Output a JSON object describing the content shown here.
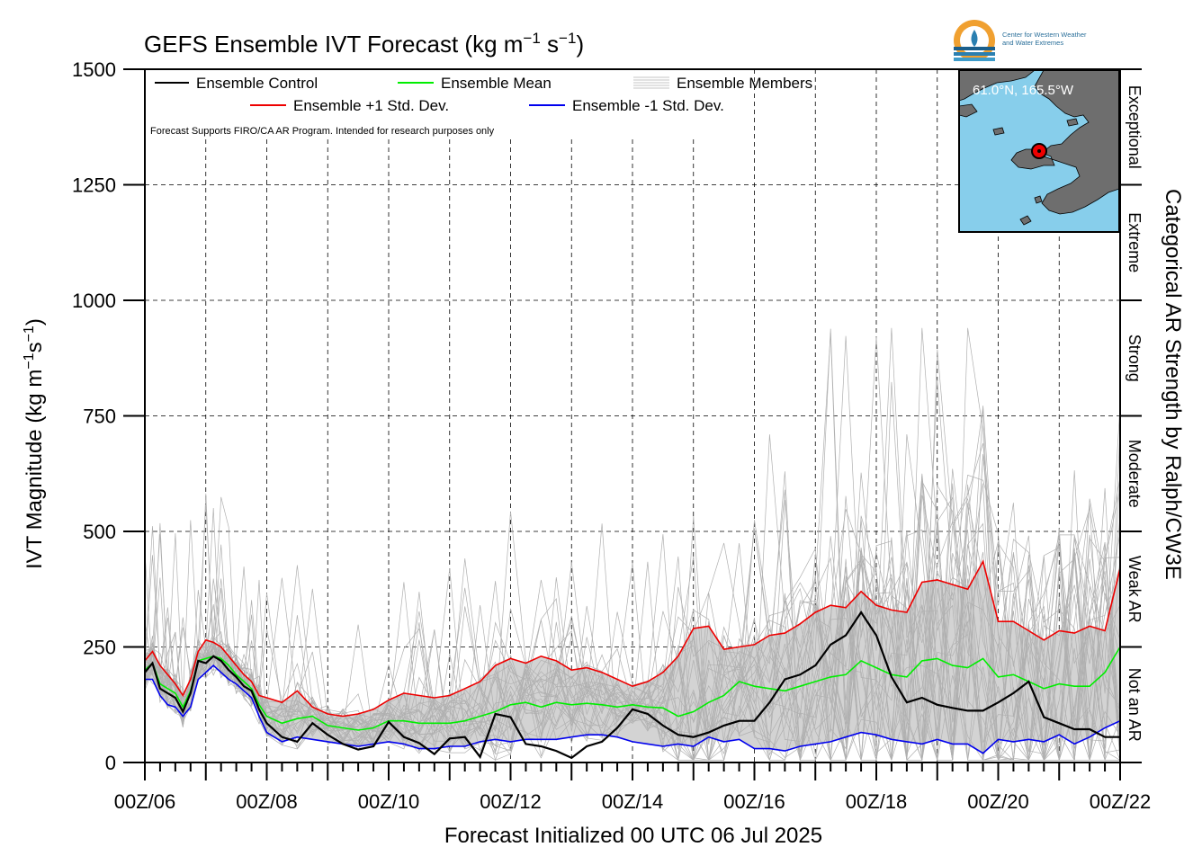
{
  "chart_data": {
    "type": "line",
    "title": "GEFS Ensemble IVT Forecast (kg m",
    "title_unit_exp1": "−1",
    "title_mid": " s",
    "title_unit_exp2": "−1",
    "title_end": ")",
    "ylabel_main": "IVT Magnitude (kg m",
    "ylabel_exp1": "−1",
    "ylabel_mid": "s",
    "ylabel_exp2": "−1",
    "ylabel_end": ")",
    "xlabel": "Forecast Initialized 00 UTC 06 Jul 2025",
    "right_label": "Categorical AR Strength by Ralph/CW3E",
    "ylim": [
      0,
      1500
    ],
    "yticks": [
      0,
      250,
      500,
      750,
      1000,
      1250,
      1500
    ],
    "x_days": [
      6,
      22
    ],
    "x_tick_labels": [
      "00Z/06",
      "00Z/08",
      "00Z/10",
      "00Z/12",
      "00Z/14",
      "00Z/16",
      "00Z/18",
      "00Z/20",
      "00Z/22"
    ],
    "grid": true,
    "categories": [
      {
        "label": "Not an AR",
        "from": 0,
        "to": 250
      },
      {
        "label": "Weak AR",
        "from": 250,
        "to": 500
      },
      {
        "label": "Moderate",
        "from": 500,
        "to": 750
      },
      {
        "label": "Strong",
        "from": 750,
        "to": 1000
      },
      {
        "label": "Extreme",
        "from": 1000,
        "to": 1250
      },
      {
        "label": "Exceptional",
        "from": 1250,
        "to": 1500
      }
    ],
    "legend": {
      "control": "Ensemble Control",
      "mean": "Ensemble Mean",
      "members": "Ensemble Members",
      "plus": "Ensemble +1 Std. Dev.",
      "minus": "Ensemble -1 Std. Dev."
    },
    "disclaimer": "Forecast Supports FIRO/CA AR Program. Intended for research purposes only",
    "inset_location": "61.0°N, 165.5°W",
    "logo_text_line1": "Center for Western Weather",
    "logo_text_line2": "and Water Extremes",
    "colors": {
      "control": "#000000",
      "mean": "#00ee00",
      "plus": "#ee0000",
      "minus": "#0000ee",
      "members": "#b0b0b0",
      "band": "#d3d3d3",
      "ocean": "#87ceeb",
      "land": "#6e6e6e"
    },
    "series": [
      {
        "name": "Ensemble Control",
        "x": [
          6.0,
          6.125,
          6.25,
          6.375,
          6.5,
          6.625,
          6.75,
          6.875,
          7.0,
          7.125,
          7.25,
          7.375,
          7.5,
          7.625,
          7.75,
          7.875,
          8.0,
          8.25,
          8.5,
          8.75,
          9.0,
          9.25,
          9.5,
          9.75,
          10.0,
          10.25,
          10.5,
          10.75,
          11.0,
          11.25,
          11.5,
          11.75,
          12.0,
          12.25,
          12.5,
          12.75,
          13.0,
          13.25,
          13.5,
          13.75,
          14.0,
          14.25,
          14.5,
          14.75,
          15.0,
          15.25,
          15.5,
          15.75,
          16.0,
          16.25,
          16.5,
          16.75,
          17.0,
          17.25,
          17.5,
          17.75,
          18.0,
          18.25,
          18.5,
          18.75,
          19.0,
          19.25,
          19.5,
          19.75,
          20.0,
          20.25,
          20.5,
          20.75,
          21.0,
          21.25,
          21.5,
          21.75,
          22.0
        ],
        "values": [
          195,
          215,
          160,
          150,
          140,
          110,
          150,
          220,
          215,
          230,
          220,
          200,
          185,
          165,
          155,
          115,
          85,
          55,
          45,
          85,
          60,
          40,
          28,
          35,
          88,
          55,
          42,
          18,
          52,
          55,
          12,
          105,
          98,
          40,
          35,
          25,
          10,
          35,
          45,
          75,
          115,
          105,
          80,
          60,
          55,
          65,
          80,
          90,
          90,
          130,
          180,
          190,
          210,
          255,
          275,
          325,
          275,
          185,
          130,
          140,
          125,
          118,
          112,
          112,
          130,
          150,
          175,
          98,
          85,
          72,
          72,
          55,
          55
        ]
      },
      {
        "name": "Ensemble Mean",
        "x": [
          6.0,
          6.125,
          6.25,
          6.375,
          6.5,
          6.625,
          6.75,
          6.875,
          7.0,
          7.125,
          7.25,
          7.375,
          7.5,
          7.625,
          7.75,
          7.875,
          8.0,
          8.25,
          8.5,
          8.75,
          9.0,
          9.25,
          9.5,
          9.75,
          10.0,
          10.25,
          10.5,
          10.75,
          11.0,
          11.25,
          11.5,
          11.75,
          12.0,
          12.25,
          12.5,
          12.75,
          13.0,
          13.25,
          13.5,
          13.75,
          14.0,
          14.25,
          14.5,
          14.75,
          15.0,
          15.25,
          15.5,
          15.75,
          16.0,
          16.25,
          16.5,
          16.75,
          17.0,
          17.25,
          17.5,
          17.75,
          18.0,
          18.25,
          18.5,
          18.75,
          19.0,
          19.25,
          19.5,
          19.75,
          20.0,
          20.25,
          20.5,
          20.75,
          21.0,
          21.25,
          21.5,
          21.75,
          22.0
        ],
        "values": [
          200,
          215,
          170,
          160,
          150,
          120,
          155,
          220,
          225,
          230,
          225,
          210,
          190,
          175,
          160,
          125,
          100,
          85,
          95,
          100,
          80,
          75,
          70,
          75,
          90,
          90,
          85,
          85,
          85,
          90,
          100,
          110,
          125,
          130,
          120,
          130,
          125,
          128,
          125,
          120,
          125,
          120,
          118,
          100,
          110,
          130,
          145,
          175,
          165,
          160,
          155,
          165,
          175,
          185,
          190,
          220,
          205,
          190,
          185,
          220,
          225,
          210,
          205,
          225,
          185,
          190,
          175,
          160,
          170,
          165,
          165,
          195,
          250
        ]
      },
      {
        "name": "Ensemble +1 Std. Dev.",
        "x": [
          6.0,
          6.125,
          6.25,
          6.375,
          6.5,
          6.625,
          6.75,
          6.875,
          7.0,
          7.125,
          7.25,
          7.375,
          7.5,
          7.625,
          7.75,
          7.875,
          8.0,
          8.25,
          8.5,
          8.75,
          9.0,
          9.25,
          9.5,
          9.75,
          10.0,
          10.25,
          10.5,
          10.75,
          11.0,
          11.25,
          11.5,
          11.75,
          12.0,
          12.25,
          12.5,
          12.75,
          13.0,
          13.25,
          13.5,
          13.75,
          14.0,
          14.25,
          14.5,
          14.75,
          15.0,
          15.25,
          15.5,
          15.75,
          16.0,
          16.25,
          16.5,
          16.75,
          17.0,
          17.25,
          17.5,
          17.75,
          18.0,
          18.25,
          18.5,
          18.75,
          19.0,
          19.25,
          19.5,
          19.75,
          20.0,
          20.25,
          20.5,
          20.75,
          21.0,
          21.25,
          21.5,
          21.75,
          22.0
        ],
        "values": [
          220,
          240,
          210,
          190,
          170,
          145,
          180,
          240,
          265,
          260,
          250,
          230,
          210,
          190,
          175,
          145,
          140,
          130,
          155,
          120,
          105,
          100,
          105,
          115,
          135,
          150,
          145,
          140,
          145,
          160,
          175,
          210,
          225,
          215,
          230,
          220,
          200,
          205,
          195,
          180,
          165,
          175,
          195,
          230,
          290,
          295,
          245,
          250,
          255,
          275,
          280,
          300,
          325,
          340,
          335,
          370,
          340,
          330,
          325,
          390,
          395,
          385,
          375,
          435,
          305,
          305,
          285,
          265,
          285,
          280,
          295,
          285,
          420
        ]
      },
      {
        "name": "Ensemble -1 Std. Dev.",
        "x": [
          6.0,
          6.125,
          6.25,
          6.375,
          6.5,
          6.625,
          6.75,
          6.875,
          7.0,
          7.125,
          7.25,
          7.375,
          7.5,
          7.625,
          7.75,
          7.875,
          8.0,
          8.25,
          8.5,
          8.75,
          9.0,
          9.25,
          9.5,
          9.75,
          10.0,
          10.25,
          10.5,
          10.75,
          11.0,
          11.25,
          11.5,
          11.75,
          12.0,
          12.25,
          12.5,
          12.75,
          13.0,
          13.25,
          13.5,
          13.75,
          14.0,
          14.25,
          14.5,
          14.75,
          15.0,
          15.25,
          15.5,
          15.75,
          16.0,
          16.25,
          16.5,
          16.75,
          17.0,
          17.25,
          17.5,
          17.75,
          18.0,
          18.25,
          18.5,
          18.75,
          19.0,
          19.25,
          19.5,
          19.75,
          20.0,
          20.25,
          20.5,
          20.75,
          21.0,
          21.25,
          21.5,
          21.75,
          22.0
        ],
        "values": [
          180,
          180,
          145,
          125,
          120,
          100,
          120,
          180,
          195,
          210,
          195,
          180,
          170,
          155,
          140,
          100,
          65,
          45,
          55,
          50,
          45,
          40,
          35,
          40,
          45,
          40,
          30,
          30,
          35,
          35,
          45,
          50,
          45,
          50,
          50,
          50,
          55,
          60,
          60,
          55,
          45,
          40,
          35,
          40,
          35,
          55,
          45,
          50,
          30,
          30,
          25,
          35,
          40,
          45,
          55,
          65,
          60,
          50,
          45,
          40,
          50,
          40,
          40,
          20,
          50,
          45,
          50,
          45,
          60,
          40,
          55,
          75,
          90
        ]
      }
    ]
  }
}
